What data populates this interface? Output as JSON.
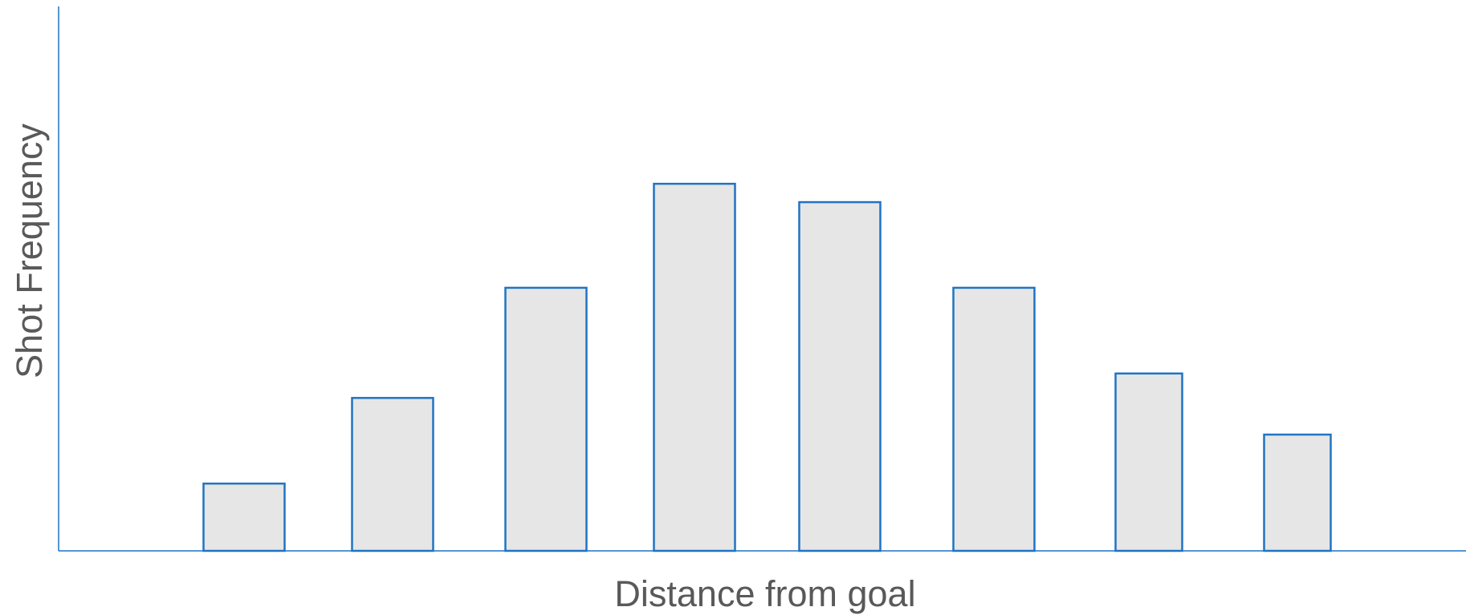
{
  "chart_data": {
    "type": "bar",
    "title": "",
    "xlabel": "Distance from goal",
    "ylabel": "Shot Frequency",
    "values": [
      11,
      25,
      43,
      60,
      57,
      43,
      29,
      19
    ],
    "ylim": [
      0,
      89
    ],
    "grid": false,
    "legend": "none",
    "tick_labels_shown": false
  },
  "colors": {
    "bar_fill": "#e6e6e6",
    "bar_stroke": "#1f74c4",
    "axis_line": "#1f74c4",
    "label_text": "#595959"
  }
}
